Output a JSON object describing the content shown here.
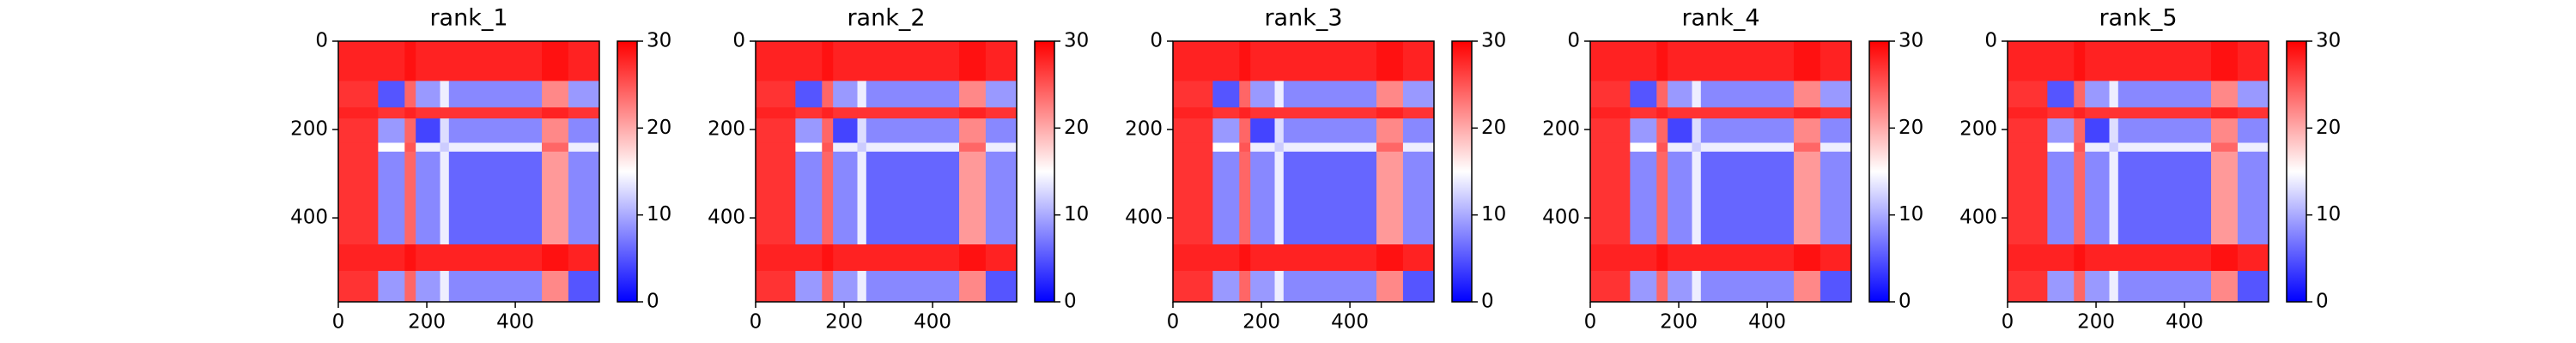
{
  "chart_data": [
    {
      "type": "heatmap",
      "title": "rank_1",
      "cmap": "bwr",
      "bins": [
        0,
        90,
        150,
        175,
        230,
        250,
        460,
        520,
        590
      ],
      "values": [
        [
          28,
          28,
          29,
          28,
          28,
          28,
          29,
          28
        ],
        [
          27,
          5,
          24,
          9,
          14,
          8,
          22,
          9
        ],
        [
          28,
          27,
          28,
          27,
          27,
          27,
          28,
          27
        ],
        [
          27,
          9,
          24,
          4,
          13,
          8,
          22,
          8
        ],
        [
          27,
          15,
          25,
          14,
          12,
          14,
          24,
          14
        ],
        [
          27,
          8,
          24,
          8,
          14,
          6,
          21,
          8
        ],
        [
          28,
          28,
          29,
          28,
          28,
          28,
          29,
          28
        ],
        [
          27,
          9,
          24,
          9,
          14,
          8,
          22,
          5
        ]
      ],
      "xlim": [
        0,
        590
      ],
      "ylim": [
        0,
        590
      ],
      "y_inverted": true,
      "xticks": [
        0,
        200,
        400
      ],
      "yticks": [
        0,
        200,
        400
      ],
      "clim": [
        0,
        30
      ],
      "cticks": [
        0,
        10,
        20,
        30
      ]
    },
    {
      "type": "heatmap",
      "title": "rank_2",
      "cmap": "bwr",
      "bins": [
        0,
        90,
        150,
        175,
        230,
        250,
        460,
        520,
        590
      ],
      "values": [
        [
          28,
          28,
          29,
          28,
          28,
          28,
          29,
          28
        ],
        [
          27,
          5,
          24,
          9,
          14,
          8,
          22,
          9
        ],
        [
          28,
          27,
          28,
          27,
          27,
          27,
          28,
          27
        ],
        [
          27,
          9,
          24,
          4,
          13,
          8,
          22,
          8
        ],
        [
          27,
          15,
          25,
          14,
          12,
          14,
          24,
          14
        ],
        [
          27,
          8,
          24,
          8,
          14,
          6,
          21,
          8
        ],
        [
          28,
          28,
          29,
          28,
          28,
          28,
          29,
          28
        ],
        [
          27,
          9,
          24,
          9,
          14,
          8,
          22,
          5
        ]
      ],
      "xlim": [
        0,
        590
      ],
      "ylim": [
        0,
        590
      ],
      "y_inverted": true,
      "xticks": [
        0,
        200,
        400
      ],
      "yticks": [
        0,
        200,
        400
      ],
      "clim": [
        0,
        30
      ],
      "cticks": [
        0,
        10,
        20,
        30
      ]
    },
    {
      "type": "heatmap",
      "title": "rank_3",
      "cmap": "bwr",
      "bins": [
        0,
        90,
        150,
        175,
        230,
        250,
        460,
        520,
        590
      ],
      "values": [
        [
          28,
          28,
          29,
          28,
          28,
          28,
          29,
          28
        ],
        [
          27,
          5,
          24,
          9,
          14,
          8,
          22,
          9
        ],
        [
          28,
          27,
          28,
          27,
          27,
          27,
          28,
          27
        ],
        [
          27,
          9,
          24,
          4,
          13,
          8,
          22,
          8
        ],
        [
          27,
          15,
          25,
          14,
          12,
          14,
          24,
          14
        ],
        [
          27,
          8,
          24,
          8,
          14,
          6,
          21,
          8
        ],
        [
          28,
          28,
          29,
          28,
          28,
          28,
          29,
          28
        ],
        [
          27,
          9,
          24,
          9,
          14,
          8,
          22,
          5
        ]
      ],
      "xlim": [
        0,
        590
      ],
      "ylim": [
        0,
        590
      ],
      "y_inverted": true,
      "xticks": [
        0,
        200,
        400
      ],
      "yticks": [
        0,
        200,
        400
      ],
      "clim": [
        0,
        30
      ],
      "cticks": [
        0,
        10,
        20,
        30
      ]
    },
    {
      "type": "heatmap",
      "title": "rank_4",
      "cmap": "bwr",
      "bins": [
        0,
        90,
        150,
        175,
        230,
        250,
        460,
        520,
        590
      ],
      "values": [
        [
          28,
          28,
          29,
          28,
          28,
          28,
          29,
          28
        ],
        [
          27,
          5,
          24,
          9,
          14,
          8,
          22,
          9
        ],
        [
          28,
          27,
          28,
          27,
          27,
          27,
          28,
          27
        ],
        [
          27,
          9,
          24,
          4,
          13,
          8,
          22,
          8
        ],
        [
          27,
          15,
          25,
          14,
          12,
          14,
          24,
          14
        ],
        [
          27,
          8,
          24,
          8,
          14,
          6,
          21,
          8
        ],
        [
          28,
          28,
          29,
          28,
          28,
          28,
          29,
          28
        ],
        [
          27,
          9,
          24,
          9,
          14,
          8,
          22,
          5
        ]
      ],
      "xlim": [
        0,
        590
      ],
      "ylim": [
        0,
        590
      ],
      "y_inverted": true,
      "xticks": [
        0,
        200,
        400
      ],
      "yticks": [
        0,
        200,
        400
      ],
      "clim": [
        0,
        30
      ],
      "cticks": [
        0,
        10,
        20,
        30
      ]
    },
    {
      "type": "heatmap",
      "title": "rank_5",
      "cmap": "bwr",
      "bins": [
        0,
        90,
        150,
        175,
        230,
        250,
        460,
        520,
        590
      ],
      "values": [
        [
          28,
          28,
          29,
          28,
          28,
          28,
          29,
          28
        ],
        [
          27,
          5,
          24,
          9,
          14,
          8,
          22,
          9
        ],
        [
          28,
          27,
          28,
          27,
          27,
          27,
          28,
          27
        ],
        [
          27,
          9,
          24,
          4,
          13,
          8,
          22,
          8
        ],
        [
          27,
          15,
          25,
          14,
          12,
          14,
          24,
          14
        ],
        [
          27,
          8,
          24,
          8,
          14,
          6,
          21,
          8
        ],
        [
          28,
          28,
          29,
          28,
          28,
          28,
          29,
          28
        ],
        [
          27,
          9,
          24,
          9,
          14,
          8,
          22,
          5
        ]
      ],
      "xlim": [
        0,
        590
      ],
      "ylim": [
        0,
        590
      ],
      "y_inverted": true,
      "xticks": [
        0,
        200,
        400
      ],
      "yticks": [
        0,
        200,
        400
      ],
      "clim": [
        0,
        30
      ],
      "cticks": [
        0,
        10,
        20,
        30
      ]
    }
  ]
}
